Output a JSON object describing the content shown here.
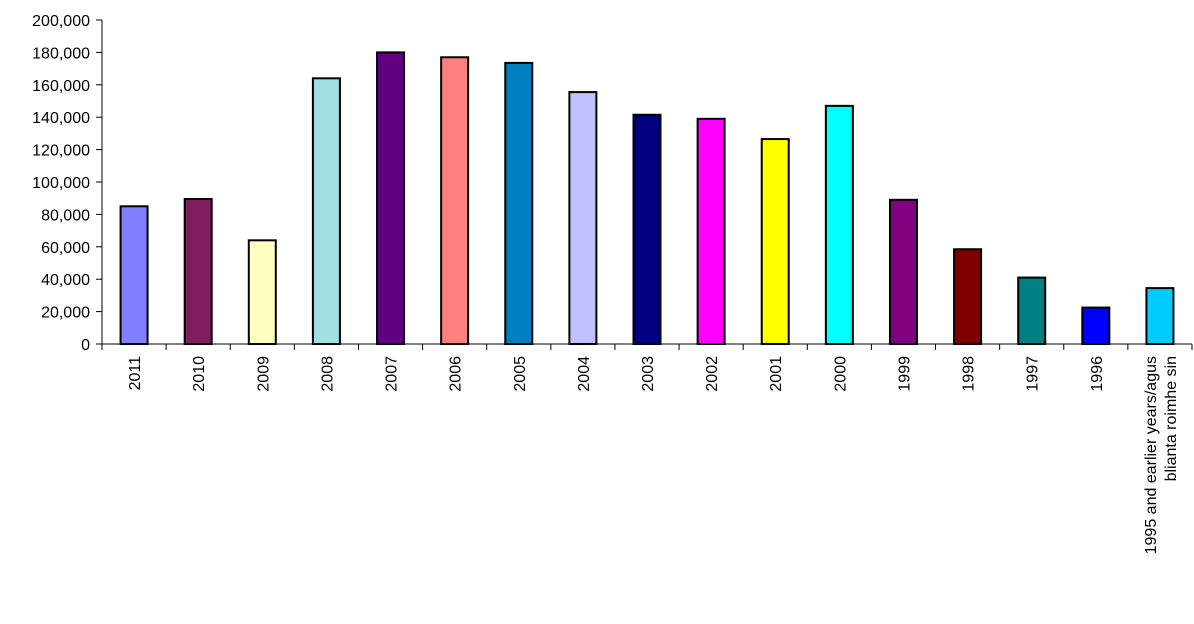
{
  "chart_data": {
    "type": "bar",
    "title": "",
    "xlabel": "",
    "ylabel": "",
    "ylim": [
      0,
      200000
    ],
    "y_ticks": [
      0,
      20000,
      40000,
      60000,
      80000,
      100000,
      120000,
      140000,
      160000,
      180000,
      200000
    ],
    "y_tick_labels": [
      "0",
      "20,000",
      "40,000",
      "60,000",
      "80,000",
      "100,000",
      "120,000",
      "140,000",
      "160,000",
      "180,000",
      "200,000"
    ],
    "grid": false,
    "legend": "none",
    "categories": [
      "2011",
      "2010",
      "2009",
      "2008",
      "2007",
      "2006",
      "2005",
      "2004",
      "2003",
      "2002",
      "2001",
      "2000",
      "1999",
      "1998",
      "1997",
      "1996",
      [
        "1995 and earlier years/agus",
        "blianta roimhe sin"
      ]
    ],
    "values": [
      85000,
      89500,
      64000,
      164000,
      180000,
      177000,
      173500,
      155500,
      141500,
      139000,
      126500,
      147000,
      89000,
      58500,
      41000,
      22500,
      34500
    ],
    "colors": [
      "#8080ff",
      "#7f1f5f",
      "#ffffc0",
      "#a0e0e0",
      "#600080",
      "#ff8080",
      "#0080c0",
      "#c0c0ff",
      "#000080",
      "#ff00ff",
      "#ffff00",
      "#00ffff",
      "#800080",
      "#800000",
      "#008080",
      "#0000ff",
      "#00ccff"
    ]
  }
}
